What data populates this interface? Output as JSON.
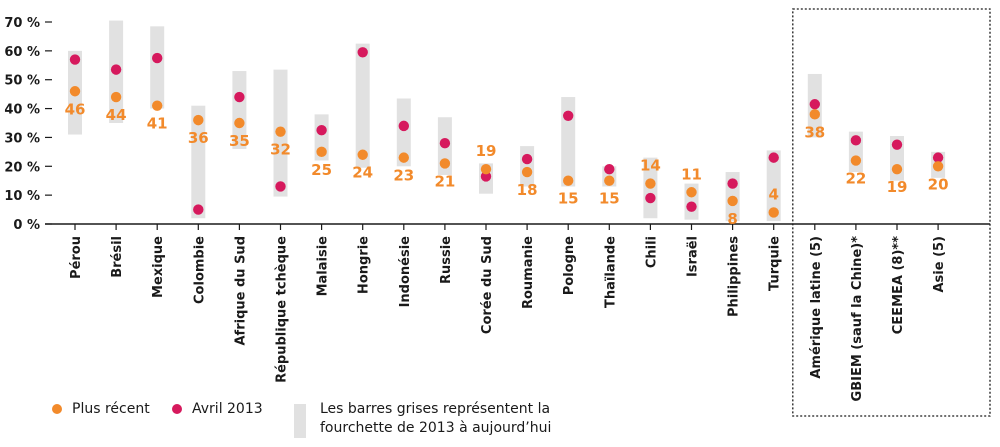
{
  "chart_data": {
    "type": "range_dot",
    "ylim": [
      0,
      70
    ],
    "yticks": [
      "0 %",
      "10 %",
      "20 %",
      "30 %",
      "40 %",
      "50 %",
      "60 %",
      "70 %"
    ],
    "categories": [
      {
        "label": "Pérou",
        "recent": 46,
        "april2013": 57,
        "range": [
          31,
          60
        ],
        "label_pos": "below"
      },
      {
        "label": "Brésil",
        "recent": 44,
        "april2013": 53.5,
        "range": [
          35,
          70.5
        ],
        "label_pos": "below"
      },
      {
        "label": "Mexique",
        "recent": 41,
        "april2013": 57.5,
        "range": [
          40,
          68.5
        ],
        "label_pos": "below"
      },
      {
        "label": "Colombie",
        "recent": 36,
        "april2013": 5,
        "range": [
          2,
          41
        ],
        "label_pos": "below"
      },
      {
        "label": "Afrique du Sud",
        "recent": 35,
        "april2013": 44,
        "range": [
          26,
          53
        ],
        "label_pos": "below"
      },
      {
        "label": "République tchèque",
        "recent": 32,
        "april2013": 13,
        "range": [
          9.5,
          53.5
        ],
        "label_pos": "below"
      },
      {
        "label": "Malaisie",
        "recent": 25,
        "april2013": 32.5,
        "range": [
          22,
          38
        ],
        "label_pos": "below"
      },
      {
        "label": "Hongrie",
        "recent": 24,
        "april2013": 59.5,
        "range": [
          19.5,
          62.5
        ],
        "label_pos": "below"
      },
      {
        "label": "Indonésie",
        "recent": 23,
        "april2013": 34,
        "range": [
          20,
          43.5
        ],
        "label_pos": "below"
      },
      {
        "label": "Russie",
        "recent": 21,
        "april2013": 28,
        "range": [
          17,
          37
        ],
        "label_pos": "below"
      },
      {
        "label": "Corée du Sud",
        "recent": 19,
        "april2013": 16.5,
        "range": [
          10.5,
          21
        ],
        "label_pos": "above"
      },
      {
        "label": "Roumanie",
        "recent": 18,
        "april2013": 22.5,
        "range": [
          13,
          27
        ],
        "label_pos": "below"
      },
      {
        "label": "Pologne",
        "recent": 15,
        "april2013": 37.5,
        "range": [
          13,
          44
        ],
        "label_pos": "below"
      },
      {
        "label": "Thaïlande",
        "recent": 15,
        "april2013": 19,
        "range": [
          13,
          20
        ],
        "label_pos": "below"
      },
      {
        "label": "Chili",
        "recent": 14,
        "april2013": 9,
        "range": [
          2,
          23
        ],
        "label_pos": "above"
      },
      {
        "label": "Israël",
        "recent": 11,
        "april2013": 6,
        "range": [
          1.5,
          14
        ],
        "label_pos": "above"
      },
      {
        "label": "Philippines",
        "recent": 8,
        "april2013": 14,
        "range": [
          1,
          18
        ],
        "label_pos": "below"
      },
      {
        "label": "Turquie",
        "recent": 4,
        "april2013": 23,
        "range": [
          1,
          25.5
        ],
        "label_pos": "above"
      },
      {
        "label": "Amérique latine (5)",
        "recent": 38,
        "april2013": 41.5,
        "range": [
          30,
          52
        ],
        "label_pos": "below"
      },
      {
        "label": "GBIEM (sauf la Chine)*",
        "recent": 22,
        "april2013": 29,
        "range": [
          18,
          32
        ],
        "label_pos": "below"
      },
      {
        "label": "CEEMEA (8)**",
        "recent": 19,
        "april2013": 27.5,
        "range": [
          15,
          30.5
        ],
        "label_pos": "below"
      },
      {
        "label": "Asie (5)",
        "recent": 20,
        "april2013": 23,
        "range": [
          16,
          25
        ],
        "label_pos": "below"
      }
    ],
    "grouped_box_from_index": 18,
    "colors": {
      "recent": "#f28a2b",
      "april2013": "#d6195d",
      "range": "#e1e1e1",
      "axis": "#1a1a1a"
    },
    "legend": {
      "recent": "Plus récent",
      "april2013": "Avril 2013",
      "range_line1": "Les barres grises représentent la",
      "range_line2": "fourchette de 2013 à aujourd’hui"
    }
  }
}
